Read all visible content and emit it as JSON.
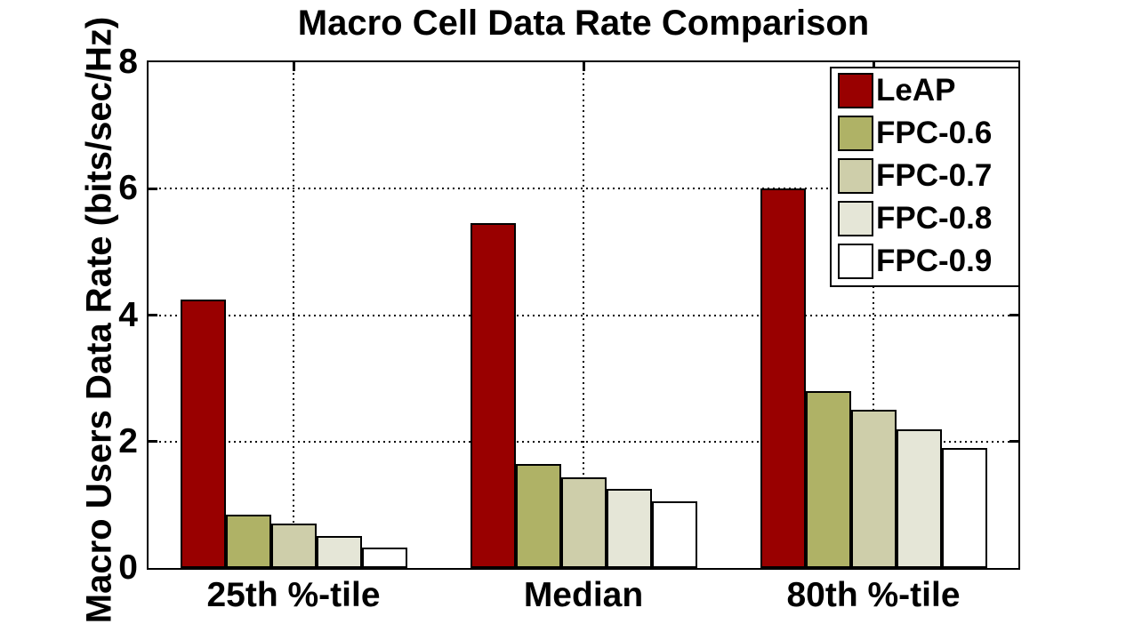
{
  "chart_data": {
    "type": "bar",
    "title": "Macro Cell Data Rate Comparison",
    "xlabel": "",
    "ylabel": "Macro Users Data Rate (bits/sec/Hz)",
    "categories": [
      "25th %-tile",
      "Median",
      "80th %-tile"
    ],
    "series": [
      {
        "name": "LeAP",
        "color": "#990000",
        "values": [
          4.25,
          5.45,
          6.0
        ]
      },
      {
        "name": "FPC-0.6",
        "color": "#AFB266",
        "values": [
          0.85,
          1.65,
          2.8
        ]
      },
      {
        "name": "FPC-0.7",
        "color": "#CECEAA",
        "values": [
          0.7,
          1.43,
          2.5
        ]
      },
      {
        "name": "FPC-0.8",
        "color": "#E5E6D7",
        "values": [
          0.5,
          1.25,
          2.2
        ]
      },
      {
        "name": "FPC-0.9",
        "color": "#FFFFFF",
        "values": [
          0.32,
          1.05,
          1.9
        ]
      }
    ],
    "ylim": [
      0,
      8
    ],
    "yticks": [
      0,
      2,
      4,
      6,
      8
    ],
    "grid": true,
    "grid_style": "dotted",
    "legend_position": "top-right",
    "axis_color": "#000000",
    "background_color": "#FFFFFF"
  }
}
